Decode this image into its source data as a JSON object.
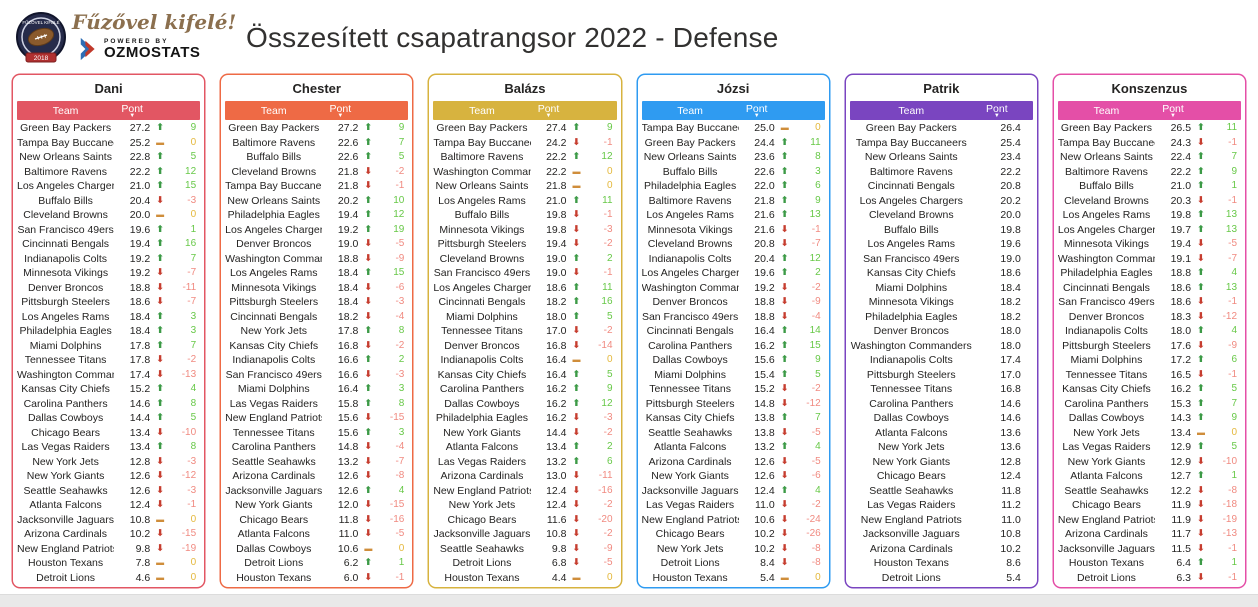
{
  "header": {
    "title": "Összesített csapatrangsor 2022 - Defense",
    "logo": {
      "badge_title": "FŰZŐVEL KIFELÉ",
      "badge_year": "2018",
      "tagline": "Fűzővel kifelé!",
      "powered_by": "POWERED BY",
      "brand": "OZMOSTATS"
    }
  },
  "indicator_colors": {
    "up_arrow": "#3c9a46",
    "up_text": "#67c847",
    "down_arrow": "#c63d2f",
    "down_text": "#f08a80",
    "flat_icon": "#cf8d3a",
    "flat_text": "#e4b83c"
  },
  "chart_data": [
    {
      "type": "table",
      "title": "Dani",
      "accent_color": "#e25663",
      "has_change": true,
      "columns": {
        "team": "Team",
        "pont": "Pont"
      },
      "rows": [
        [
          "Green Bay Packers",
          "27.2",
          9
        ],
        [
          "Tampa Bay Buccaneers",
          "25.2",
          0
        ],
        [
          "New Orleans Saints",
          "22.8",
          5
        ],
        [
          "Baltimore Ravens",
          "22.2",
          12
        ],
        [
          "Los Angeles Chargers",
          "21.0",
          15
        ],
        [
          "Buffalo Bills",
          "20.4",
          -3
        ],
        [
          "Cleveland Browns",
          "20.0",
          0
        ],
        [
          "San Francisco 49ers",
          "19.6",
          1
        ],
        [
          "Cincinnati Bengals",
          "19.4",
          16
        ],
        [
          "Indianapolis Colts",
          "19.2",
          7
        ],
        [
          "Minnesota Vikings",
          "19.2",
          -7
        ],
        [
          "Denver Broncos",
          "18.8",
          -11
        ],
        [
          "Pittsburgh Steelers",
          "18.6",
          -7
        ],
        [
          "Los Angeles Rams",
          "18.4",
          3
        ],
        [
          "Philadelphia Eagles",
          "18.4",
          3
        ],
        [
          "Miami Dolphins",
          "17.8",
          7
        ],
        [
          "Tennessee Titans",
          "17.8",
          -2
        ],
        [
          "Washington Commanders",
          "17.4",
          -13
        ],
        [
          "Kansas City Chiefs",
          "15.2",
          4
        ],
        [
          "Carolina Panthers",
          "14.6",
          8
        ],
        [
          "Dallas Cowboys",
          "14.4",
          5
        ],
        [
          "Chicago Bears",
          "13.4",
          -10
        ],
        [
          "Las Vegas Raiders",
          "13.4",
          8
        ],
        [
          "New York Jets",
          "12.8",
          -3
        ],
        [
          "New York Giants",
          "12.6",
          -12
        ],
        [
          "Seattle Seahawks",
          "12.6",
          -3
        ],
        [
          "Atlanta Falcons",
          "12.4",
          -1
        ],
        [
          "Jacksonville Jaguars",
          "10.8",
          0
        ],
        [
          "Arizona Cardinals",
          "10.2",
          -15
        ],
        [
          "New England Patriots",
          "9.8",
          -19
        ],
        [
          "Houston Texans",
          "7.8",
          0
        ],
        [
          "Detroit Lions",
          "4.6",
          0
        ]
      ]
    },
    {
      "type": "table",
      "title": "Chester",
      "accent_color": "#ee6a45",
      "has_change": true,
      "columns": {
        "team": "Team",
        "pont": "Pont"
      },
      "rows": [
        [
          "Green Bay Packers",
          "27.2",
          9
        ],
        [
          "Baltimore Ravens",
          "22.6",
          7
        ],
        [
          "Buffalo Bills",
          "22.6",
          5
        ],
        [
          "Cleveland Browns",
          "21.8",
          -2
        ],
        [
          "Tampa Bay Buccaneers",
          "21.8",
          -1
        ],
        [
          "New Orleans Saints",
          "20.2",
          10
        ],
        [
          "Philadelphia Eagles",
          "19.4",
          12
        ],
        [
          "Los Angeles Chargers",
          "19.2",
          19
        ],
        [
          "Denver Broncos",
          "19.0",
          -5
        ],
        [
          "Washington Commanders",
          "18.8",
          -9
        ],
        [
          "Los Angeles Rams",
          "18.4",
          15
        ],
        [
          "Minnesota Vikings",
          "18.4",
          -6
        ],
        [
          "Pittsburgh Steelers",
          "18.4",
          -3
        ],
        [
          "Cincinnati Bengals",
          "18.2",
          -4
        ],
        [
          "New York Jets",
          "17.8",
          8
        ],
        [
          "Kansas City Chiefs",
          "16.8",
          -2
        ],
        [
          "Indianapolis Colts",
          "16.6",
          2
        ],
        [
          "San Francisco 49ers",
          "16.6",
          -3
        ],
        [
          "Miami Dolphins",
          "16.4",
          3
        ],
        [
          "Las Vegas Raiders",
          "15.8",
          8
        ],
        [
          "New England Patriots",
          "15.6",
          -15
        ],
        [
          "Tennessee Titans",
          "15.6",
          3
        ],
        [
          "Carolina Panthers",
          "14.8",
          -4
        ],
        [
          "Seattle Seahawks",
          "13.2",
          -7
        ],
        [
          "Arizona Cardinals",
          "12.6",
          -8
        ],
        [
          "Jacksonville Jaguars",
          "12.6",
          4
        ],
        [
          "New York Giants",
          "12.0",
          -15
        ],
        [
          "Chicago Bears",
          "11.8",
          -16
        ],
        [
          "Atlanta Falcons",
          "11.0",
          -5
        ],
        [
          "Dallas Cowboys",
          "10.6",
          0
        ],
        [
          "Detroit Lions",
          "6.2",
          1
        ],
        [
          "Houston Texans",
          "6.0",
          -1
        ]
      ]
    },
    {
      "type": "table",
      "title": "Balázs",
      "accent_color": "#d7b33f",
      "has_change": true,
      "columns": {
        "team": "Team",
        "pont": "Pont"
      },
      "rows": [
        [
          "Green Bay Packers",
          "27.4",
          9
        ],
        [
          "Tampa Bay Buccaneers",
          "24.2",
          -1
        ],
        [
          "Baltimore Ravens",
          "22.2",
          12
        ],
        [
          "Washington Commanders",
          "22.2",
          0
        ],
        [
          "New Orleans Saints",
          "21.8",
          0
        ],
        [
          "Los Angeles Rams",
          "21.0",
          11
        ],
        [
          "Buffalo Bills",
          "19.8",
          -1
        ],
        [
          "Minnesota Vikings",
          "19.8",
          -3
        ],
        [
          "Pittsburgh Steelers",
          "19.4",
          -2
        ],
        [
          "Cleveland Browns",
          "19.0",
          2
        ],
        [
          "San Francisco 49ers",
          "19.0",
          -1
        ],
        [
          "Los Angeles Chargers",
          "18.6",
          11
        ],
        [
          "Cincinnati Bengals",
          "18.2",
          16
        ],
        [
          "Miami Dolphins",
          "18.0",
          5
        ],
        [
          "Tennessee Titans",
          "17.0",
          -2
        ],
        [
          "Denver Broncos",
          "16.8",
          -14
        ],
        [
          "Indianapolis Colts",
          "16.4",
          0
        ],
        [
          "Kansas City Chiefs",
          "16.4",
          5
        ],
        [
          "Carolina Panthers",
          "16.2",
          9
        ],
        [
          "Dallas Cowboys",
          "16.2",
          12
        ],
        [
          "Philadelphia Eagles",
          "16.2",
          -3
        ],
        [
          "New York Giants",
          "14.4",
          -2
        ],
        [
          "Atlanta Falcons",
          "13.4",
          2
        ],
        [
          "Las Vegas Raiders",
          "13.2",
          6
        ],
        [
          "Arizona Cardinals",
          "13.0",
          -11
        ],
        [
          "New England Patriots",
          "12.4",
          -16
        ],
        [
          "New York Jets",
          "12.4",
          -2
        ],
        [
          "Chicago Bears",
          "11.6",
          -20
        ],
        [
          "Jacksonville Jaguars",
          "10.8",
          -2
        ],
        [
          "Seattle Seahawks",
          "9.8",
          -9
        ],
        [
          "Detroit Lions",
          "6.8",
          -5
        ],
        [
          "Houston Texans",
          "4.4",
          0
        ]
      ]
    },
    {
      "type": "table",
      "title": "Józsi",
      "accent_color": "#2f9bf1",
      "has_change": true,
      "columns": {
        "team": "Team",
        "pont": "Pont"
      },
      "rows": [
        [
          "Tampa Bay Buccaneers",
          "25.0",
          0
        ],
        [
          "Green Bay Packers",
          "24.4",
          11
        ],
        [
          "New Orleans Saints",
          "23.6",
          8
        ],
        [
          "Buffalo Bills",
          "22.6",
          3
        ],
        [
          "Philadelphia Eagles",
          "22.0",
          6
        ],
        [
          "Baltimore Ravens",
          "21.8",
          9
        ],
        [
          "Los Angeles Rams",
          "21.6",
          13
        ],
        [
          "Minnesota Vikings",
          "21.6",
          -1
        ],
        [
          "Cleveland Browns",
          "20.8",
          -7
        ],
        [
          "Indianapolis Colts",
          "20.4",
          12
        ],
        [
          "Los Angeles Chargers",
          "19.6",
          2
        ],
        [
          "Washington Commanders",
          "19.2",
          -2
        ],
        [
          "Denver Broncos",
          "18.8",
          -9
        ],
        [
          "San Francisco 49ers",
          "18.8",
          -4
        ],
        [
          "Cincinnati Bengals",
          "16.4",
          14
        ],
        [
          "Carolina Panthers",
          "16.2",
          15
        ],
        [
          "Dallas Cowboys",
          "15.6",
          9
        ],
        [
          "Miami Dolphins",
          "15.4",
          5
        ],
        [
          "Tennessee Titans",
          "15.2",
          -2
        ],
        [
          "Pittsburgh Steelers",
          "14.8",
          -12
        ],
        [
          "Kansas City Chiefs",
          "13.8",
          7
        ],
        [
          "Seattle Seahawks",
          "13.8",
          -5
        ],
        [
          "Atlanta Falcons",
          "13.2",
          4
        ],
        [
          "Arizona Cardinals",
          "12.6",
          -5
        ],
        [
          "New York Giants",
          "12.6",
          -6
        ],
        [
          "Jacksonville Jaguars",
          "12.4",
          4
        ],
        [
          "Las Vegas Raiders",
          "11.0",
          -2
        ],
        [
          "New England Patriots",
          "10.6",
          -24
        ],
        [
          "Chicago Bears",
          "10.2",
          -26
        ],
        [
          "New York Jets",
          "10.2",
          -8
        ],
        [
          "Detroit Lions",
          "8.4",
          -8
        ],
        [
          "Houston Texans",
          "5.4",
          0
        ]
      ]
    },
    {
      "type": "table",
      "title": "Patrik",
      "accent_color": "#7a45c0",
      "has_change": false,
      "columns": {
        "team": "Team",
        "pont": "Pont"
      },
      "rows": [
        [
          "Green Bay Packers",
          "26.4"
        ],
        [
          "Tampa Bay Buccaneers",
          "25.4"
        ],
        [
          "New Orleans Saints",
          "23.4"
        ],
        [
          "Baltimore Ravens",
          "22.2"
        ],
        [
          "Cincinnati Bengals",
          "20.8"
        ],
        [
          "Los Angeles Chargers",
          "20.2"
        ],
        [
          "Cleveland Browns",
          "20.0"
        ],
        [
          "Buffalo Bills",
          "19.8"
        ],
        [
          "Los Angeles Rams",
          "19.6"
        ],
        [
          "San Francisco 49ers",
          "19.0"
        ],
        [
          "Kansas City Chiefs",
          "18.6"
        ],
        [
          "Miami Dolphins",
          "18.4"
        ],
        [
          "Minnesota Vikings",
          "18.2"
        ],
        [
          "Philadelphia Eagles",
          "18.2"
        ],
        [
          "Denver Broncos",
          "18.0"
        ],
        [
          "Washington Commanders",
          "18.0"
        ],
        [
          "Indianapolis Colts",
          "17.4"
        ],
        [
          "Pittsburgh Steelers",
          "17.0"
        ],
        [
          "Tennessee Titans",
          "16.8"
        ],
        [
          "Carolina Panthers",
          "14.6"
        ],
        [
          "Dallas Cowboys",
          "14.6"
        ],
        [
          "Atlanta Falcons",
          "13.6"
        ],
        [
          "New York Jets",
          "13.6"
        ],
        [
          "New York Giants",
          "12.8"
        ],
        [
          "Chicago Bears",
          "12.4"
        ],
        [
          "Seattle Seahawks",
          "11.8"
        ],
        [
          "Las Vegas Raiders",
          "11.2"
        ],
        [
          "New England Patriots",
          "11.0"
        ],
        [
          "Jacksonville Jaguars",
          "10.8"
        ],
        [
          "Arizona Cardinals",
          "10.2"
        ],
        [
          "Houston Texans",
          "8.6"
        ],
        [
          "Detroit Lions",
          "5.4"
        ]
      ]
    },
    {
      "type": "table",
      "title": "Konszenzus",
      "accent_color": "#e44fa7",
      "has_change": true,
      "columns": {
        "team": "Team",
        "pont": "Pont"
      },
      "rows": [
        [
          "Green Bay Packers",
          "26.5",
          11
        ],
        [
          "Tampa Bay Buccaneers",
          "24.3",
          -1
        ],
        [
          "New Orleans Saints",
          "22.4",
          7
        ],
        [
          "Baltimore Ravens",
          "22.2",
          9
        ],
        [
          "Buffalo Bills",
          "21.0",
          1
        ],
        [
          "Cleveland Browns",
          "20.3",
          -1
        ],
        [
          "Los Angeles Rams",
          "19.8",
          13
        ],
        [
          "Los Angeles Chargers",
          "19.7",
          13
        ],
        [
          "Minnesota Vikings",
          "19.4",
          -5
        ],
        [
          "Washington Commanders",
          "19.1",
          -7
        ],
        [
          "Philadelphia Eagles",
          "18.8",
          4
        ],
        [
          "Cincinnati Bengals",
          "18.6",
          13
        ],
        [
          "San Francisco 49ers",
          "18.6",
          -1
        ],
        [
          "Denver Broncos",
          "18.3",
          -12
        ],
        [
          "Indianapolis Colts",
          "18.0",
          4
        ],
        [
          "Pittsburgh Steelers",
          "17.6",
          -9
        ],
        [
          "Miami Dolphins",
          "17.2",
          6
        ],
        [
          "Tennessee Titans",
          "16.5",
          -1
        ],
        [
          "Kansas City Chiefs",
          "16.2",
          5
        ],
        [
          "Carolina Panthers",
          "15.3",
          7
        ],
        [
          "Dallas Cowboys",
          "14.3",
          9
        ],
        [
          "New York Jets",
          "13.4",
          0
        ],
        [
          "Las Vegas Raiders",
          "12.9",
          5
        ],
        [
          "New York Giants",
          "12.9",
          -10
        ],
        [
          "Atlanta Falcons",
          "12.7",
          1
        ],
        [
          "Seattle Seahawks",
          "12.2",
          -8
        ],
        [
          "Chicago Bears",
          "11.9",
          -18
        ],
        [
          "New England Patriots",
          "11.9",
          -19
        ],
        [
          "Arizona Cardinals",
          "11.7",
          -13
        ],
        [
          "Jacksonville Jaguars",
          "11.5",
          -1
        ],
        [
          "Houston Texans",
          "6.4",
          1
        ],
        [
          "Detroit Lions",
          "6.3",
          -1
        ]
      ]
    }
  ]
}
